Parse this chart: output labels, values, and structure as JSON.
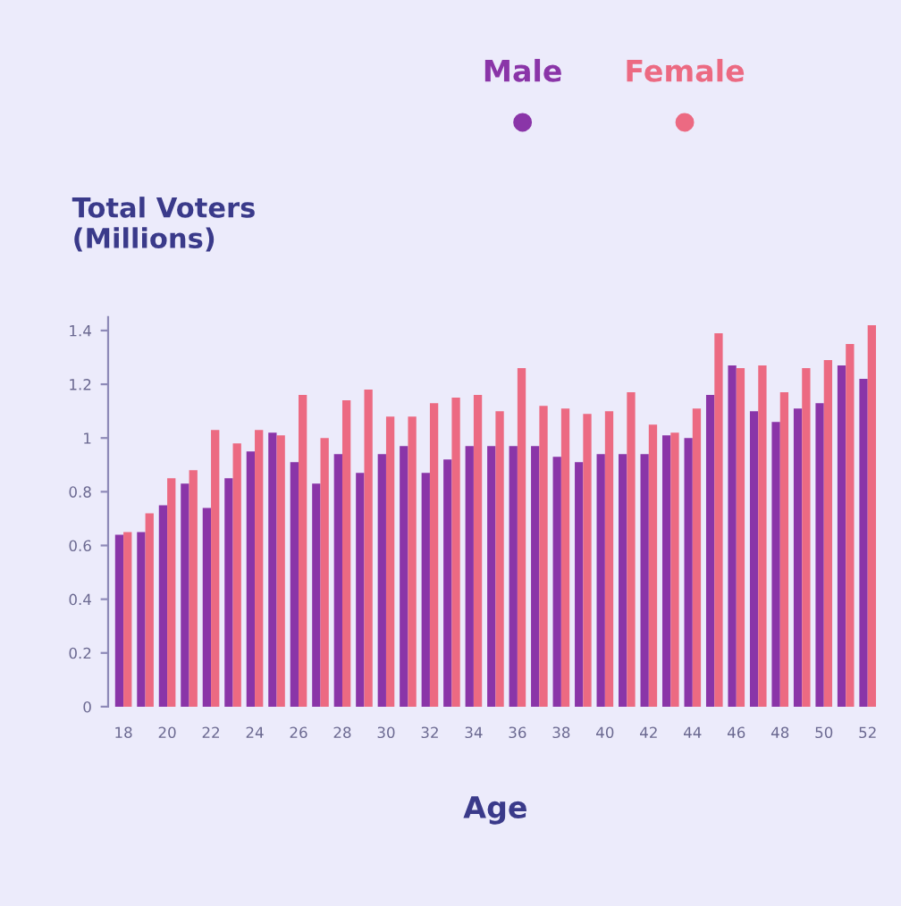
{
  "chart_data": {
    "type": "bar",
    "ylabel": "Total Voters\n(Millions)",
    "xlabel": "Age",
    "categories": [
      "18",
      null,
      "20",
      null,
      "22",
      null,
      "24",
      null,
      "26",
      null,
      "28",
      null,
      "30",
      null,
      "32",
      null,
      "34",
      null,
      "36",
      null,
      "38",
      null,
      "40",
      null,
      "42",
      null,
      "44",
      null,
      "46",
      null,
      "48",
      null,
      "50",
      null,
      "52"
    ],
    "series": [
      {
        "name": "Male",
        "color": "#8a35a8",
        "values": [
          0.64,
          0.65,
          0.75,
          0.83,
          0.74,
          0.85,
          0.95,
          1.02,
          0.91,
          0.83,
          0.94,
          0.87,
          0.94,
          0.97,
          0.87,
          0.92,
          0.97,
          0.97,
          0.97,
          0.97,
          0.93,
          0.91,
          0.94,
          0.94,
          0.94,
          1.01,
          1.0,
          1.16,
          1.27,
          1.1,
          1.06,
          1.11,
          1.13,
          1.27,
          1.22
        ]
      },
      {
        "name": "Female",
        "color": "#ec6a82",
        "values": [
          0.65,
          0.72,
          0.85,
          0.88,
          1.03,
          0.98,
          1.03,
          1.01,
          1.16,
          1.0,
          1.14,
          1.18,
          1.08,
          1.08,
          1.13,
          1.15,
          1.16,
          1.1,
          1.26,
          1.12,
          1.11,
          1.09,
          1.1,
          1.17,
          1.05,
          1.02,
          1.11,
          1.39,
          1.26,
          1.27,
          1.17,
          1.26,
          1.29,
          1.35,
          1.42
        ]
      }
    ],
    "ylim": [
      0,
      1.45
    ],
    "yticks": [
      0,
      0.2,
      0.4,
      0.6,
      0.8,
      1,
      1.2,
      1.4
    ],
    "grid": false,
    "legend": "top"
  }
}
